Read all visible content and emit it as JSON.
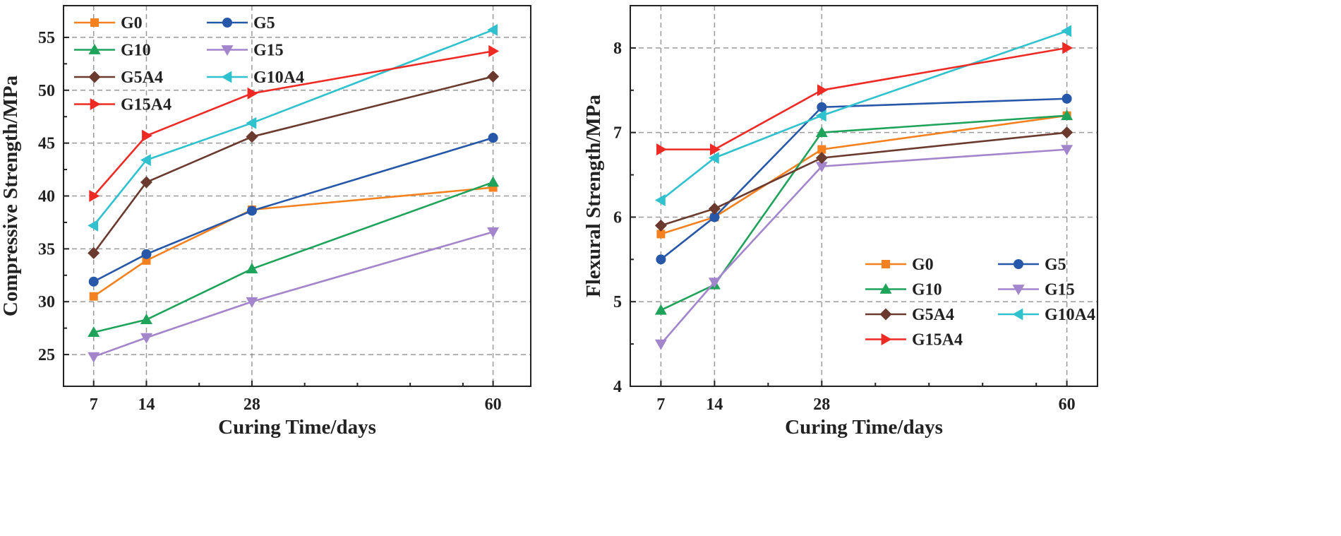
{
  "chart_data": [
    {
      "type": "line",
      "xlabel": "Curing Time/days",
      "ylabel": "Compressive Strength/MPa",
      "x": [
        7,
        14,
        28,
        60
      ],
      "x_ticks": [
        7,
        14,
        28,
        60
      ],
      "xlim": [
        3,
        65
      ],
      "ylim": [
        22,
        58
      ],
      "y_ticks": [
        25,
        30,
        35,
        40,
        45,
        50,
        55
      ],
      "grid": true,
      "legend_placement": "top-left",
      "series": [
        {
          "name": "G0",
          "color": "#F4811F",
          "marker": "square",
          "values": [
            30.5,
            33.9,
            38.7,
            40.8
          ]
        },
        {
          "name": "G5",
          "color": "#2657A8",
          "marker": "circle",
          "values": [
            31.9,
            34.5,
            38.6,
            45.5
          ]
        },
        {
          "name": "G10",
          "color": "#1FA35B",
          "marker": "triangle-up",
          "values": [
            27.1,
            28.3,
            33.1,
            41.3
          ]
        },
        {
          "name": "G15",
          "color": "#A385CC",
          "marker": "triangle-down",
          "values": [
            24.8,
            26.6,
            30.0,
            36.6
          ]
        },
        {
          "name": "G5A4",
          "color": "#6B3A2F",
          "marker": "diamond",
          "values": [
            34.6,
            41.3,
            45.6,
            51.3
          ]
        },
        {
          "name": "G10A4",
          "color": "#2FC1CE",
          "marker": "triangle-left",
          "values": [
            37.2,
            43.4,
            46.9,
            55.7
          ]
        },
        {
          "name": "G15A4",
          "color": "#EE2A24",
          "marker": "triangle-right",
          "values": [
            40.0,
            45.7,
            49.7,
            53.7
          ]
        }
      ]
    },
    {
      "type": "line",
      "xlabel": "Curing Time/days",
      "ylabel": "Flexural Strength/MPa",
      "x": [
        7,
        14,
        28,
        60
      ],
      "x_ticks": [
        7,
        14,
        28,
        60
      ],
      "xlim": [
        3,
        64
      ],
      "ylim": [
        4,
        8.5
      ],
      "y_ticks": [
        4,
        5,
        6,
        7,
        8
      ],
      "grid": true,
      "legend_placement": "bottom-right",
      "series": [
        {
          "name": "G0",
          "color": "#F4811F",
          "marker": "square",
          "values": [
            5.8,
            6.0,
            6.8,
            7.2
          ]
        },
        {
          "name": "G5",
          "color": "#2657A8",
          "marker": "circle",
          "values": [
            5.5,
            6.0,
            7.3,
            7.4
          ]
        },
        {
          "name": "G10",
          "color": "#1FA35B",
          "marker": "triangle-up",
          "values": [
            4.9,
            5.2,
            7.0,
            7.2
          ]
        },
        {
          "name": "G15",
          "color": "#A385CC",
          "marker": "triangle-down",
          "values": [
            4.5,
            5.23,
            6.6,
            6.8
          ]
        },
        {
          "name": "G5A4",
          "color": "#6B3A2F",
          "marker": "diamond",
          "values": [
            5.9,
            6.1,
            6.7,
            7.0
          ]
        },
        {
          "name": "G10A4",
          "color": "#2FC1CE",
          "marker": "triangle-left",
          "values": [
            6.2,
            6.7,
            7.2,
            8.2
          ]
        },
        {
          "name": "G15A4",
          "color": "#EE2A24",
          "marker": "triangle-right",
          "values": [
            6.8,
            6.8,
            7.5,
            8.0
          ]
        }
      ]
    }
  ]
}
